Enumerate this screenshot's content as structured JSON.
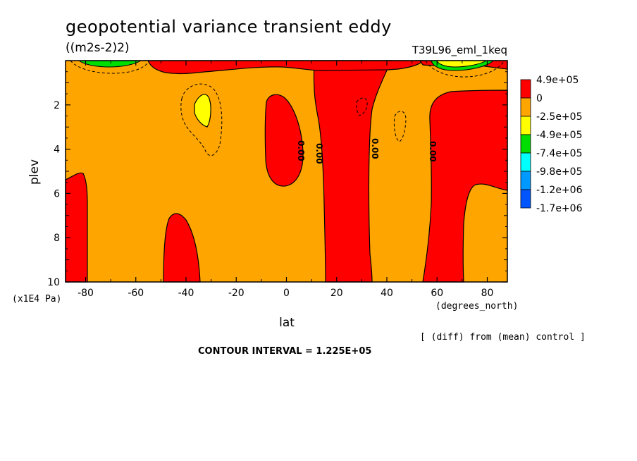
{
  "chart_data": {
    "type": "heatmap",
    "title": "geopotential variance transient eddy",
    "units": "((m2s-2)2)",
    "run_label": "T39L96_eml_1keq",
    "xlabel": "lat",
    "x_units": "(degrees_north)",
    "ylabel": "plev",
    "y_units": "(x1E4 Pa)",
    "xlim": [
      -88,
      88
    ],
    "ylim": [
      10,
      0
    ],
    "x_ticks": [
      -80,
      -60,
      -40,
      -20,
      0,
      20,
      40,
      60,
      80
    ],
    "y_ticks": [
      2,
      4,
      6,
      8,
      10
    ],
    "x_tick_labels": [
      "-80",
      "-60",
      "-40",
      "-20",
      "0",
      "20",
      "40",
      "60",
      "80"
    ],
    "y_tick_labels": [
      "2",
      "4",
      "6",
      "8",
      "10"
    ],
    "contour_interval": "CONTOUR INTERVAL = 1.225E+05",
    "note": "[ (diff) from (mean) control ]",
    "contour_labels": [
      "0.00",
      "0.00",
      "0.00",
      "0.00"
    ],
    "colorbar": {
      "labels": [
        "4.9e+05",
        "0",
        "-2.5e+05",
        "-4.9e+05",
        "-7.4e+05",
        "-9.8e+05",
        "-1.2e+06",
        "-1.7e+06"
      ],
      "colors": [
        "#ff0000",
        "#ffa500",
        "#ffff00",
        "#00dd00",
        "#00ffff",
        "#0099ff",
        "#0055ff"
      ]
    },
    "background_color": "#ffa500",
    "positive_color": "#ff0000",
    "regions": [
      {
        "sign": "positive",
        "lon": [
          -88,
          -82
        ],
        "plev": [
          5.2,
          10
        ]
      },
      {
        "sign": "positive",
        "lon": [
          -48,
          -33
        ],
        "plev": [
          6.9,
          10
        ]
      },
      {
        "sign": "positive",
        "lon": [
          -8,
          7
        ],
        "plev": [
          1.7,
          5.7
        ]
      },
      {
        "sign": "positive",
        "lon": [
          12,
          32
        ],
        "plev": [
          0,
          10
        ]
      },
      {
        "sign": "positive",
        "lon": [
          54,
          88
        ],
        "plev": [
          1.3,
          10
        ]
      },
      {
        "sign": "positive",
        "lon": [
          -55,
          40
        ],
        "plev": [
          0,
          0.6
        ]
      },
      {
        "sign": "negative",
        "lon": [
          -35,
          -29
        ],
        "plev": [
          1.4,
          3.1
        ]
      },
      {
        "sign": "strong-negative",
        "lon": [
          60,
          76
        ],
        "plev": [
          0,
          0.35
        ]
      }
    ]
  }
}
